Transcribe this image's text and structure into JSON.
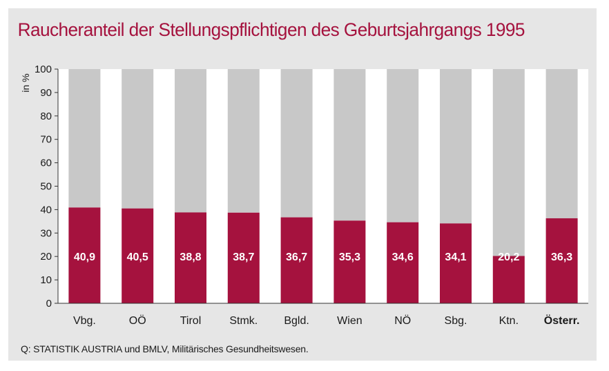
{
  "title": "Raucheranteil der Stellungspflichtigen des Geburtsjahrgangs 1995",
  "source": "Q: STATISTIK AUSTRIA und BMLV, Militärisches Gesundheitswesen.",
  "colors": {
    "accent": "#a5123e",
    "bar_remainder": "#c8c8c8",
    "panel": "#e6e6e6",
    "plot_bg": "#ffffff"
  },
  "chart_data": {
    "type": "bar",
    "stacked_to": 100,
    "ylabel": "in %",
    "ylim": [
      0,
      100
    ],
    "yticks": [
      "0",
      "10",
      "20",
      "30",
      "40",
      "50",
      "60",
      "70",
      "80",
      "90",
      "100"
    ],
    "categories": [
      "Vbg.",
      "OÖ",
      "Tirol",
      "Stmk.",
      "Bgld.",
      "Wien",
      "NÖ",
      "Sbg.",
      "Ktn.",
      "Österr."
    ],
    "bold_categories": [
      "Österr."
    ],
    "values": [
      40.9,
      40.5,
      38.8,
      38.7,
      36.7,
      35.3,
      34.6,
      34.1,
      20.2,
      36.3
    ],
    "value_labels": [
      "40,9",
      "40,5",
      "38,8",
      "38,7",
      "36,7",
      "35,3",
      "34,6",
      "34,1",
      "20,2",
      "36,3"
    ],
    "grid": false,
    "legend": "none"
  }
}
